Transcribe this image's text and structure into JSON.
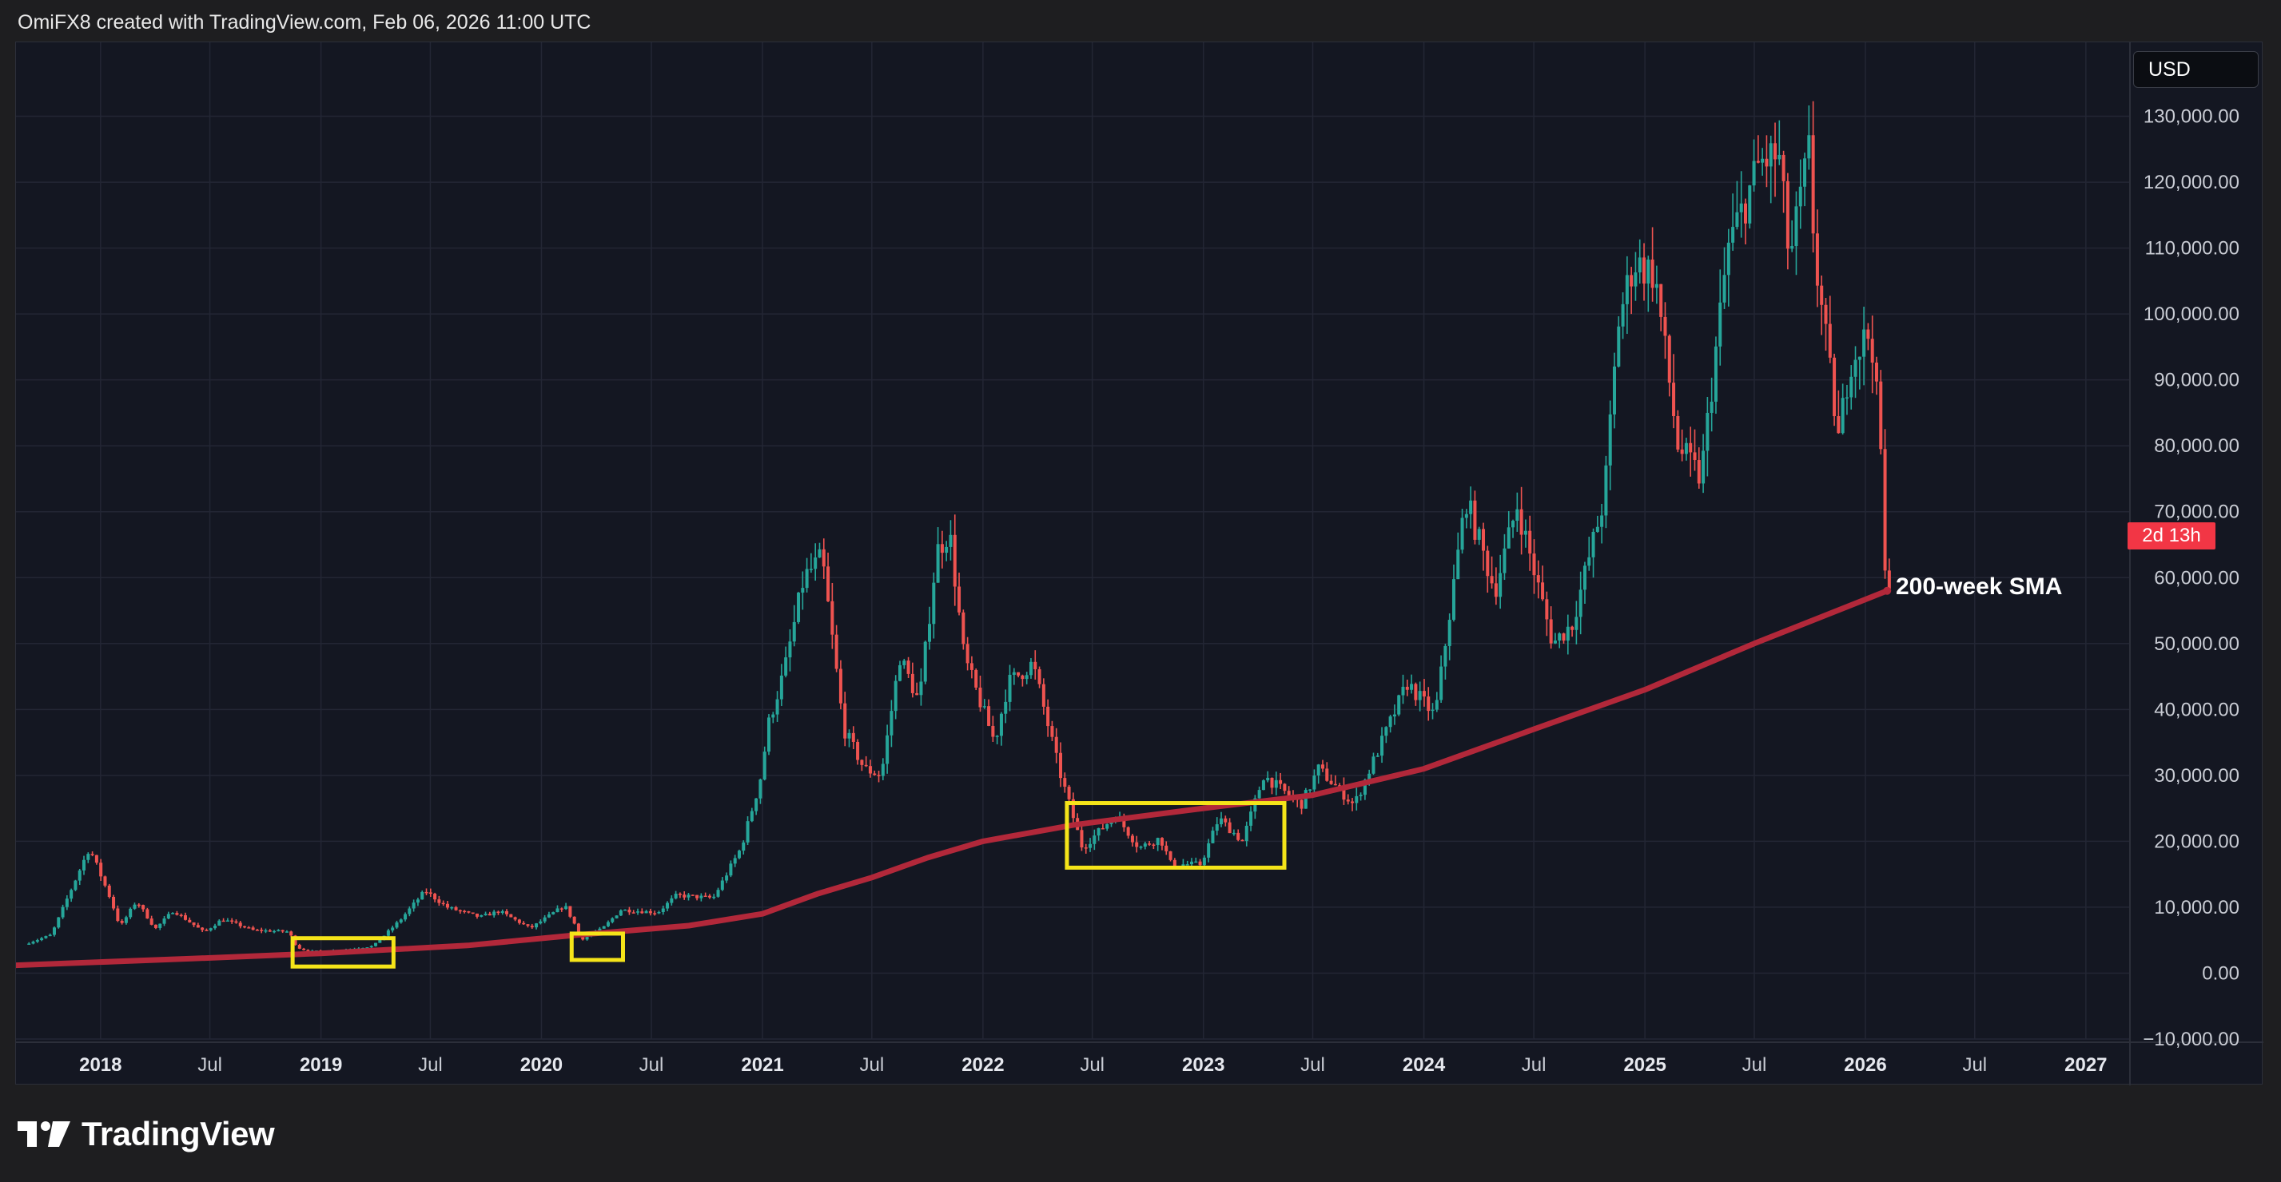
{
  "header": {
    "text": "OmiFX8 created with TradingView.com, Feb 06, 2026 11:00 UTC"
  },
  "toolbar": {
    "currency": "USD"
  },
  "price_scale": {
    "countdown_label": "2d 13h"
  },
  "annotation": {
    "sma_label": "200-week SMA"
  },
  "brand": {
    "name": "TradingView"
  },
  "colors": {
    "up": "#26a69a",
    "down": "#ef5350",
    "sma": "#b2283a",
    "highlight_box": "#f5e419",
    "badge": "#f23645",
    "grid": "#232634"
  },
  "chart_data": {
    "type": "candlestick",
    "title": "",
    "ylim": [
      -10000,
      140000
    ],
    "xlim": [
      "2017-08-14",
      "2027-03-15"
    ],
    "y_ticks": [
      {
        "value": 130000,
        "label": "130,000.00"
      },
      {
        "value": 120000,
        "label": "120,000.00"
      },
      {
        "value": 110000,
        "label": "110,000.00"
      },
      {
        "value": 100000,
        "label": "100,000.00"
      },
      {
        "value": 90000,
        "label": "90,000.00"
      },
      {
        "value": 80000,
        "label": "80,000.00"
      },
      {
        "value": 70000,
        "label": "70,000.00"
      },
      {
        "value": 60000,
        "label": "60,000.00"
      },
      {
        "value": 50000,
        "label": "50,000.00"
      },
      {
        "value": 40000,
        "label": "40,000.00"
      },
      {
        "value": 30000,
        "label": "30,000.00"
      },
      {
        "value": 20000,
        "label": "20,000.00"
      },
      {
        "value": 10000,
        "label": "10,000.00"
      },
      {
        "value": 0,
        "label": "0.00"
      },
      {
        "value": -10000,
        "label": "−10,000.00"
      }
    ],
    "x_ticks": [
      {
        "date": "2018-01-01",
        "label": "2018",
        "major": true
      },
      {
        "date": "2018-07-01",
        "label": "Jul",
        "major": false
      },
      {
        "date": "2019-01-01",
        "label": "2019",
        "major": true
      },
      {
        "date": "2019-07-01",
        "label": "Jul",
        "major": false
      },
      {
        "date": "2020-01-01",
        "label": "2020",
        "major": true
      },
      {
        "date": "2020-07-01",
        "label": "Jul",
        "major": false
      },
      {
        "date": "2021-01-01",
        "label": "2021",
        "major": true
      },
      {
        "date": "2021-07-01",
        "label": "Jul",
        "major": false
      },
      {
        "date": "2022-01-01",
        "label": "2022",
        "major": true
      },
      {
        "date": "2022-07-01",
        "label": "Jul",
        "major": false
      },
      {
        "date": "2023-01-01",
        "label": "2023",
        "major": true
      },
      {
        "date": "2023-07-01",
        "label": "Jul",
        "major": false
      },
      {
        "date": "2024-01-01",
        "label": "2024",
        "major": true
      },
      {
        "date": "2024-07-01",
        "label": "Jul",
        "major": false
      },
      {
        "date": "2025-01-01",
        "label": "2025",
        "major": true
      },
      {
        "date": "2025-07-01",
        "label": "Jul",
        "major": false
      },
      {
        "date": "2026-01-01",
        "label": "2026",
        "major": true
      },
      {
        "date": "2026-07-01",
        "label": "Jul",
        "major": false
      },
      {
        "date": "2027-01-01",
        "label": "2027",
        "major": true
      }
    ],
    "price_path": [
      [
        "2017-09-01",
        4400
      ],
      [
        "2017-10-15",
        5800
      ],
      [
        "2017-12-17",
        19000
      ],
      [
        "2018-01-20",
        11500
      ],
      [
        "2018-02-06",
        7000
      ],
      [
        "2018-03-05",
        11000
      ],
      [
        "2018-04-05",
        6700
      ],
      [
        "2018-05-05",
        9500
      ],
      [
        "2018-06-25",
        6200
      ],
      [
        "2018-07-25",
        8200
      ],
      [
        "2018-09-15",
        6500
      ],
      [
        "2018-11-12",
        6300
      ],
      [
        "2018-11-26",
        3900
      ],
      [
        "2018-12-15",
        3300
      ],
      [
        "2019-02-01",
        3450
      ],
      [
        "2019-04-01",
        4100
      ],
      [
        "2019-05-15",
        8000
      ],
      [
        "2019-06-26",
        12500
      ],
      [
        "2019-08-01",
        10000
      ],
      [
        "2019-09-24",
        8500
      ],
      [
        "2019-10-27",
        9400
      ],
      [
        "2019-12-17",
        6800
      ],
      [
        "2020-02-12",
        10300
      ],
      [
        "2020-03-12",
        5200
      ],
      [
        "2020-04-15",
        6800
      ],
      [
        "2020-05-15",
        9600
      ],
      [
        "2020-07-15",
        9200
      ],
      [
        "2020-08-15",
        11800
      ],
      [
        "2020-10-15",
        11400
      ],
      [
        "2020-11-30",
        19000
      ],
      [
        "2020-12-31",
        29000
      ],
      [
        "2021-01-15",
        38000
      ],
      [
        "2021-02-10",
        46000
      ],
      [
        "2021-03-14",
        60000
      ],
      [
        "2021-04-13",
        63000
      ],
      [
        "2021-05-19",
        37000
      ],
      [
        "2021-06-22",
        31000
      ],
      [
        "2021-07-20",
        30000
      ],
      [
        "2021-08-20",
        48000
      ],
      [
        "2021-09-21",
        41000
      ],
      [
        "2021-10-20",
        64000
      ],
      [
        "2021-11-10",
        67000
      ],
      [
        "2021-12-04",
        48000
      ],
      [
        "2022-01-24",
        35000
      ],
      [
        "2022-02-15",
        44000
      ],
      [
        "2022-03-28",
        47000
      ],
      [
        "2022-05-10",
        31000
      ],
      [
        "2022-06-18",
        19000
      ],
      [
        "2022-08-12",
        24000
      ],
      [
        "2022-09-20",
        19000
      ],
      [
        "2022-10-25",
        20500
      ],
      [
        "2022-11-12",
        16500
      ],
      [
        "2022-12-31",
        16500
      ],
      [
        "2023-01-30",
        23500
      ],
      [
        "2023-03-10",
        20000
      ],
      [
        "2023-04-14",
        30000
      ],
      [
        "2023-06-15",
        25500
      ],
      [
        "2023-07-14",
        31000
      ],
      [
        "2023-09-11",
        25500
      ],
      [
        "2023-10-24",
        34500
      ],
      [
        "2023-12-08",
        44000
      ],
      [
        "2024-01-23",
        39000
      ],
      [
        "2024-03-14",
        72000
      ],
      [
        "2024-05-01",
        58000
      ],
      [
        "2024-06-07",
        71000
      ],
      [
        "2024-08-05",
        50000
      ],
      [
        "2024-09-06",
        53000
      ],
      [
        "2024-10-29",
        72000
      ],
      [
        "2024-11-22",
        99000
      ],
      [
        "2024-12-17",
        108000
      ],
      [
        "2025-01-21",
        106000
      ],
      [
        "2025-02-28",
        80000
      ],
      [
        "2025-04-07",
        75000
      ],
      [
        "2025-05-22",
        110000
      ],
      [
        "2025-07-14",
        123000
      ],
      [
        "2025-08-14",
        124000
      ],
      [
        "2025-09-01",
        108000
      ],
      [
        "2025-10-06",
        126000
      ],
      [
        "2025-10-11",
        110000
      ],
      [
        "2025-11-21",
        81000
      ],
      [
        "2025-12-10",
        93000
      ],
      [
        "2026-01-14",
        97500
      ],
      [
        "2026-01-31",
        78000
      ],
      [
        "2026-02-06",
        60000
      ]
    ],
    "series": [
      {
        "name": "200-week SMA",
        "type": "line",
        "points": [
          [
            "2017-08-14",
            1200
          ],
          [
            "2018-06-01",
            2200
          ],
          [
            "2019-01-01",
            3000
          ],
          [
            "2019-09-01",
            4200
          ],
          [
            "2020-03-01",
            5800
          ],
          [
            "2020-09-01",
            7200
          ],
          [
            "2021-01-01",
            9000
          ],
          [
            "2021-04-01",
            12000
          ],
          [
            "2021-07-01",
            14500
          ],
          [
            "2021-10-01",
            17500
          ],
          [
            "2022-01-01",
            20000
          ],
          [
            "2022-06-01",
            22500
          ],
          [
            "2023-01-01",
            25000
          ],
          [
            "2023-07-01",
            27000
          ],
          [
            "2024-01-01",
            31000
          ],
          [
            "2024-07-01",
            37000
          ],
          [
            "2025-01-01",
            43000
          ],
          [
            "2025-07-01",
            50000
          ],
          [
            "2026-02-06",
            58000
          ]
        ]
      }
    ],
    "highlight_boxes": [
      {
        "x0": "2018-11-15",
        "x1": "2019-05-01",
        "y0": 1000,
        "y1": 5300
      },
      {
        "x0": "2020-02-20",
        "x1": "2020-05-15",
        "y0": 2000,
        "y1": 6000
      },
      {
        "x0": "2022-05-20",
        "x1": "2023-05-15",
        "y0": 16000,
        "y1": 25800
      }
    ]
  }
}
